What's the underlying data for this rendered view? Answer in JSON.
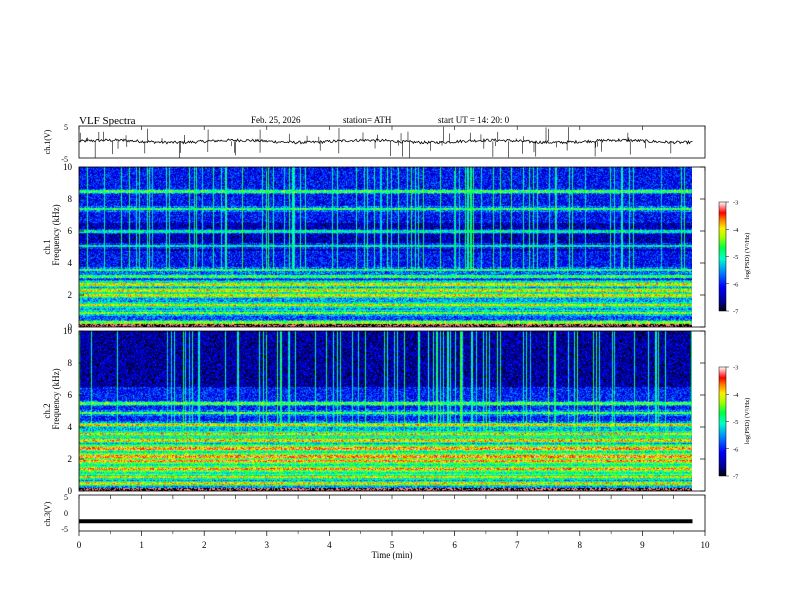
{
  "header": {
    "title": "VLF  Spectra",
    "date": "Feb. 25, 2026",
    "station": "station= ATH",
    "start": "start  UT  =   14: 20: 0"
  },
  "colors": {
    "spectrogram_scale": [
      "#000000",
      "#00007a",
      "#0000ff",
      "#0066ff",
      "#00ccff",
      "#00ff88",
      "#66ff00",
      "#ffff00",
      "#ff9900",
      "#ff0000",
      "#ffffff"
    ],
    "trace": "#000000"
  },
  "chart_data": [
    {
      "type": "line",
      "name": "ch1-waveform",
      "ylabel": "ch.1(V)",
      "yticks": [
        "5",
        "-5"
      ],
      "ylim": [
        -5,
        5
      ],
      "xlim": [
        0,
        10
      ],
      "baseline_v": 0.2,
      "note": "noisy waveform around ~0 V with sparse spikes"
    },
    {
      "type": "heatmap",
      "name": "ch1-spectrogram",
      "ylabel": "ch.1\nFrequency  (kHz)",
      "ylim": [
        0,
        10
      ],
      "yticks": [
        "10",
        "8",
        "6",
        "4",
        "2",
        "0"
      ],
      "xlim": [
        0,
        9.8
      ],
      "colorbar": {
        "label": "log(PSD) (V²/Hz)",
        "range": [
          -7,
          -3
        ],
        "ticks": [
          "-3",
          "-4",
          "-5",
          "-6",
          "-7"
        ]
      },
      "bands_khz": [
        0.3,
        0.9,
        1.4,
        2.0,
        2.3,
        2.7,
        3.2,
        3.6,
        5.1,
        6.0,
        7.4,
        8.5
      ]
    },
    {
      "type": "heatmap",
      "name": "ch2-spectrogram",
      "ylabel": "ch.2\nFrequency  (kHz)",
      "ylim": [
        0,
        10
      ],
      "yticks": [
        "10",
        "8",
        "6",
        "4",
        "2",
        "0"
      ],
      "xlim": [
        0,
        9.8
      ],
      "colorbar": {
        "label": "log(PSD) (V²/Hz)",
        "range": [
          -7,
          -3
        ],
        "ticks": [
          "-3",
          "-4",
          "-5",
          "-6",
          "-7"
        ]
      },
      "bands_khz": [
        0.5,
        0.9,
        1.4,
        1.9,
        2.2,
        2.7,
        3.2,
        3.6,
        4.2,
        4.9,
        5.5
      ]
    },
    {
      "type": "line",
      "name": "ch3-waveform",
      "ylabel": "ch.3(V)",
      "yticks": [
        "5",
        "0",
        "-5"
      ],
      "ylim": [
        -5,
        5
      ],
      "xlim": [
        0,
        10
      ],
      "baseline_v": -2.3,
      "note": "flat thick trace near -2.3 V"
    }
  ],
  "xaxis": {
    "label": "Time  (min)",
    "ticks": [
      "0",
      "1",
      "2",
      "3",
      "4",
      "5",
      "6",
      "7",
      "8",
      "9",
      "10"
    ],
    "range": [
      0,
      10
    ]
  }
}
